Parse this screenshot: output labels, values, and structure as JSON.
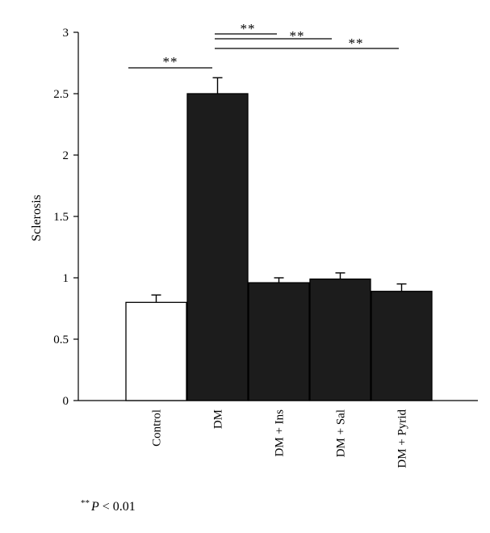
{
  "chart_data": {
    "type": "bar",
    "categories": [
      "Control",
      "DM",
      "DM + Ins",
      "DM + Sal",
      "DM + Pyrid"
    ],
    "values": [
      0.8,
      2.5,
      0.96,
      0.99,
      0.89
    ],
    "errors": [
      0.06,
      0.13,
      0.04,
      0.05,
      0.06
    ],
    "bar_colors": [
      "#ffffff",
      "#1c1c1c",
      "#1c1c1c",
      "#1c1c1c",
      "#1c1c1c"
    ],
    "ylabel": "Sclerosis",
    "xlabel": "",
    "ylim": [
      0,
      3
    ],
    "yticks": [
      "0",
      "0.5",
      "1",
      "1.5",
      "2",
      "2.5",
      "3"
    ],
    "significance": [
      {
        "from": "Control",
        "to": "DM",
        "label": "**"
      },
      {
        "from": "DM",
        "to": "DM + Ins",
        "label": "**"
      },
      {
        "from": "DM",
        "to": "DM + Sal",
        "label": "**"
      },
      {
        "from": "DM",
        "to": "DM + Pyrid",
        "label": "**"
      }
    ],
    "footnote": {
      "stars": "**",
      "p": "P",
      "rest": " < 0.01"
    },
    "grid": false
  }
}
